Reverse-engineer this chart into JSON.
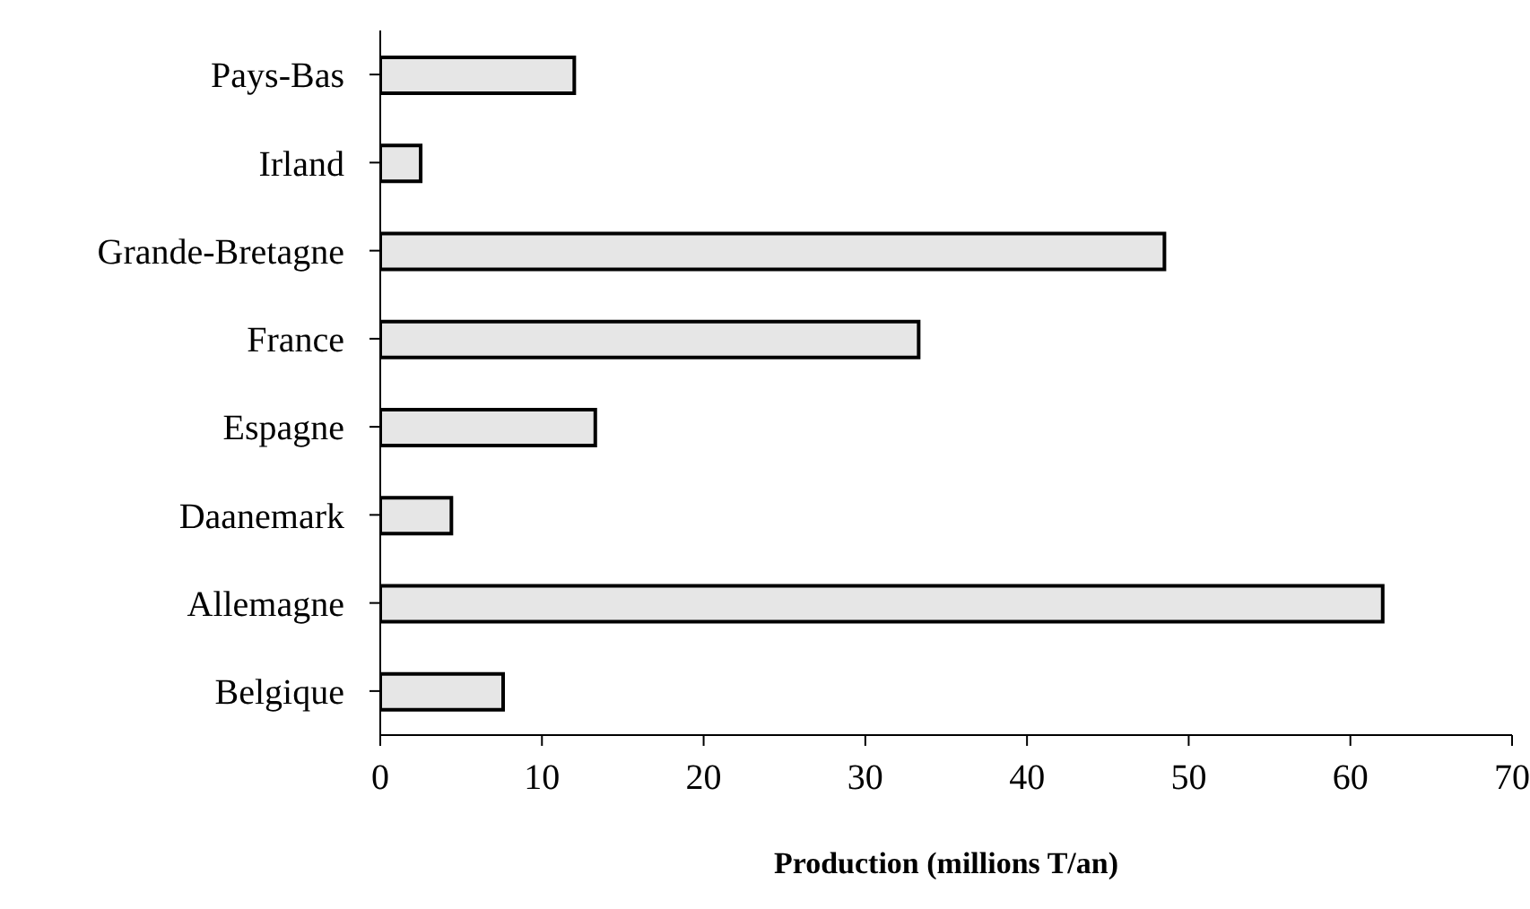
{
  "chart_data": {
    "type": "bar",
    "orientation": "horizontal",
    "xlabel": "Production (millions T/an)",
    "categories": [
      "Pays-Bas",
      "Irland",
      "Grande-Bretagne",
      "France",
      "Espagne",
      "Daanemark",
      "Allemagne",
      "Belgique"
    ],
    "values": [
      12,
      2.5,
      48.5,
      33.3,
      13.3,
      4.4,
      62,
      7.6
    ],
    "color": "#e6e6e6",
    "xlim": [
      0,
      70
    ],
    "xticks": [
      0,
      10,
      20,
      30,
      40,
      50,
      60,
      70
    ],
    "grid": false,
    "legend": false
  }
}
